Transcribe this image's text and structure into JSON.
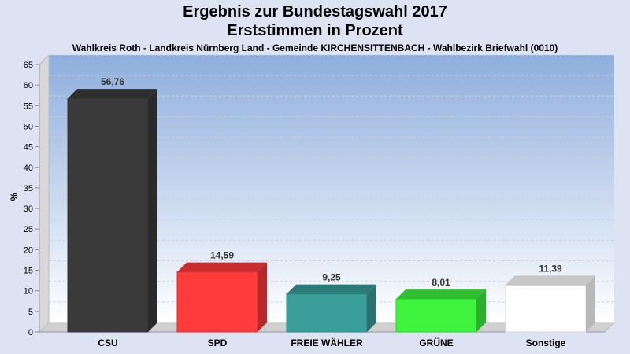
{
  "chart_data": {
    "type": "bar",
    "title": "Ergebnis zur Bundestagswahl 2017",
    "subtitle": "Erststimmen in Prozent",
    "caption": "Wahlkreis Roth - Landkreis Nürnberg Land - Gemeinde KIRCHENSITTENBACH - Wahlbezirk Briefwahl (0010)",
    "ylabel": "%",
    "xlabel": "",
    "ylim": [
      0,
      65
    ],
    "yticks": [
      0,
      5,
      10,
      15,
      20,
      25,
      30,
      35,
      40,
      45,
      50,
      55,
      60,
      65
    ],
    "grid": true,
    "categories": [
      "CSU",
      "SPD",
      "FREIE WÄHLER",
      "GRÜNE",
      "Sonstige"
    ],
    "values": [
      56.76,
      14.59,
      9.25,
      8.01,
      11.39
    ],
    "value_labels": [
      "56,76",
      "14,59",
      "9,25",
      "8,01",
      "11,39"
    ],
    "colors": [
      "#3a3a3a",
      "#ff3b3b",
      "#3a9e9a",
      "#3cf53c",
      "#ffffff"
    ]
  }
}
